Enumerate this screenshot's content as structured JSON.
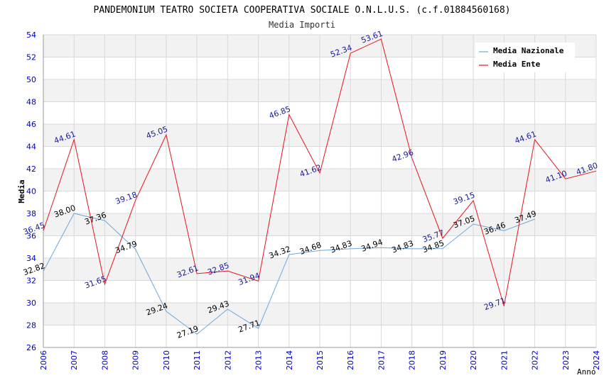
{
  "chart_data": {
    "type": "line",
    "title": "PANDEMONIUM TEATRO SOCIETA COOPERATIVA SOCIALE O.N.L.U.S. (c.f.01884560168)",
    "subtitle": "Media Importi",
    "xlabel": "Anno",
    "ylabel": "Media",
    "ylim": [
      26,
      54
    ],
    "yticks": [
      "26",
      "28",
      "30",
      "32",
      "34",
      "36",
      "38",
      "40",
      "42",
      "44",
      "46",
      "48",
      "50",
      "52",
      "54"
    ],
    "categories": [
      "2006",
      "2007",
      "2008",
      "2009",
      "2010",
      "2011",
      "2012",
      "2013",
      "2014",
      "2015",
      "2016",
      "2017",
      "2018",
      "2019",
      "2020",
      "2021",
      "2022",
      "2023",
      "2024"
    ],
    "legend_position": "top-right",
    "grid": true,
    "series": [
      {
        "name": "Media Nazionale",
        "color": "#6fa8dc",
        "label_color": "#000000",
        "values": [
          32.82,
          38.0,
          37.36,
          34.79,
          29.24,
          27.19,
          29.43,
          27.71,
          34.32,
          34.68,
          34.83,
          34.94,
          34.83,
          34.85,
          37.05,
          36.46,
          37.49,
          null,
          null
        ],
        "labels": [
          "32.82",
          "38.00",
          "37.36",
          "34.79",
          "29.24",
          "27.19",
          "29.43",
          "27.71",
          "34.32",
          "34.68",
          "34.83",
          "34.94",
          "34.83",
          "34.85",
          "37.05",
          "36.46",
          "37.49",
          null,
          null
        ]
      },
      {
        "name": "Media Ente",
        "color": "#e8131d",
        "label_color": "#1a1a9c",
        "values": [
          36.45,
          44.61,
          31.65,
          39.18,
          45.05,
          32.61,
          32.85,
          31.94,
          46.85,
          41.62,
          52.34,
          53.61,
          42.96,
          35.77,
          39.15,
          29.71,
          44.61,
          41.1,
          41.8
        ],
        "labels": [
          "36.45",
          "44.61",
          "31.65",
          "39.18",
          "45.05",
          "32.61",
          "32.85",
          "31.94",
          "46.85",
          "41.62",
          "52.34",
          "53.61",
          "42.96",
          "35.77",
          "39.15",
          "29.71",
          "44.61",
          "41.10",
          "41.80"
        ]
      }
    ]
  },
  "colors": {
    "axis_text": "#0000cc",
    "band": "#f2f2f2",
    "grid": "#d9d9d9",
    "axis_line": "#999999",
    "title_text": "#000000",
    "subtitle_text": "#333333"
  }
}
